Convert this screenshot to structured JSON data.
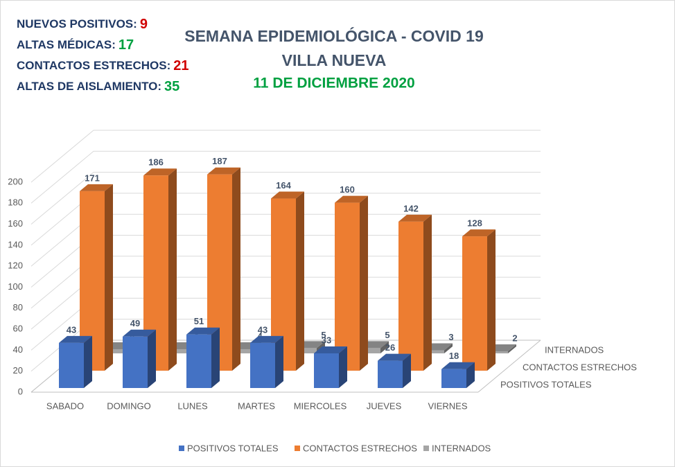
{
  "header": {
    "stats": [
      {
        "label": "NUEVOS POSITIVOS:",
        "value": 9,
        "color": "#d00000"
      },
      {
        "label": "ALTAS MÉDICAS:",
        "value": 17,
        "color": "#00a040"
      },
      {
        "label": "CONTACTOS ESTRECHOS:",
        "value": 21,
        "color": "#d00000"
      },
      {
        "label": "ALTAS DE AISLAMIENTO:",
        "value": 35,
        "color": "#00a040"
      }
    ]
  },
  "chart_data": {
    "type": "bar3d",
    "title": "SEMANA EPIDEMIOLÓGICA - COVID 19",
    "subtitle": "VILLA NUEVA",
    "date": "11 DE DICIEMBRE 2020",
    "date_color": "#00a040",
    "categories": [
      "SABADO",
      "DOMINGO",
      "LUNES",
      "MARTES",
      "MIERCOLES",
      "JUEVES",
      "VIERNES"
    ],
    "series": [
      {
        "name": "POSITIVOS TOTALES",
        "color": "#4472c4",
        "values": [
          43,
          49,
          51,
          43,
          33,
          26,
          18
        ]
      },
      {
        "name": "CONTACTOS ESTRECHOS",
        "color": "#ed7d31",
        "values": [
          171,
          186,
          187,
          164,
          160,
          142,
          128
        ]
      },
      {
        "name": "INTERNADOS",
        "color": "#a5a5a5",
        "values": [
          4,
          4,
          4,
          5,
          5,
          3,
          2
        ]
      }
    ],
    "ylim": [
      0,
      200
    ],
    "yticks": [
      0,
      20,
      40,
      60,
      80,
      100,
      120,
      140,
      160,
      180,
      200
    ],
    "grid": true,
    "legend": "bottom"
  }
}
